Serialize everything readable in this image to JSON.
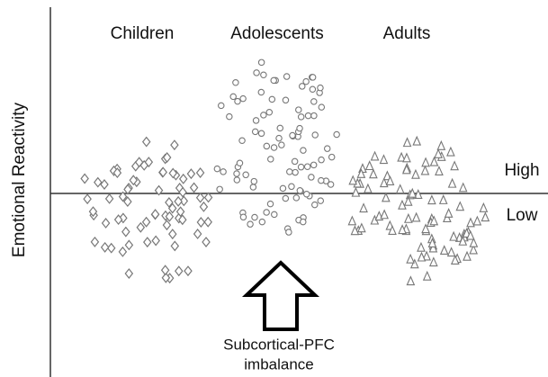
{
  "groups": [
    "Children",
    "Adolescents",
    "Adults"
  ],
  "y_axis_label": "Emotional Reactivity",
  "levels": {
    "high": "High",
    "low": "Low"
  },
  "arrow_label": [
    "Subcortical-PFC",
    "imbalance"
  ]
}
